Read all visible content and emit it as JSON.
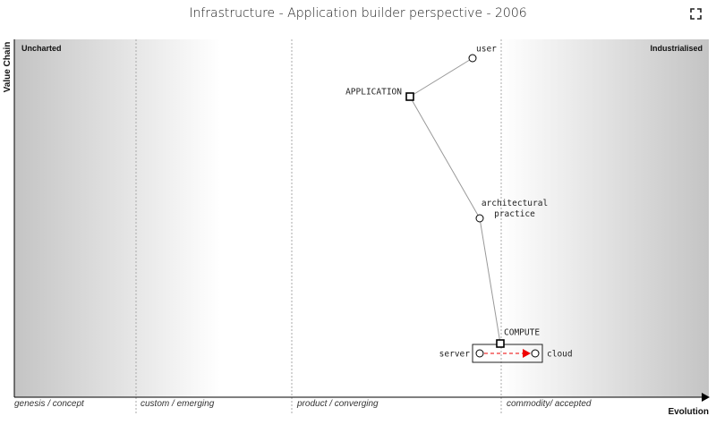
{
  "title": "Infrastructure - Application builder perspective - 2006",
  "axes": {
    "y_label": "Value Chain",
    "x_label": "Evolution"
  },
  "regions": {
    "left": "Uncharted",
    "right": "Industrialised"
  },
  "stages": [
    "genesis / concept",
    "custom / emerging",
    "product / converging",
    "commodity/ accepted"
  ],
  "nodes": [
    {
      "label": "user"
    },
    {
      "label": "APPLICATION"
    },
    {
      "label": "architectural practice"
    },
    {
      "label": "COMPUTE"
    },
    {
      "label": "server"
    },
    {
      "label": "cloud"
    }
  ]
}
